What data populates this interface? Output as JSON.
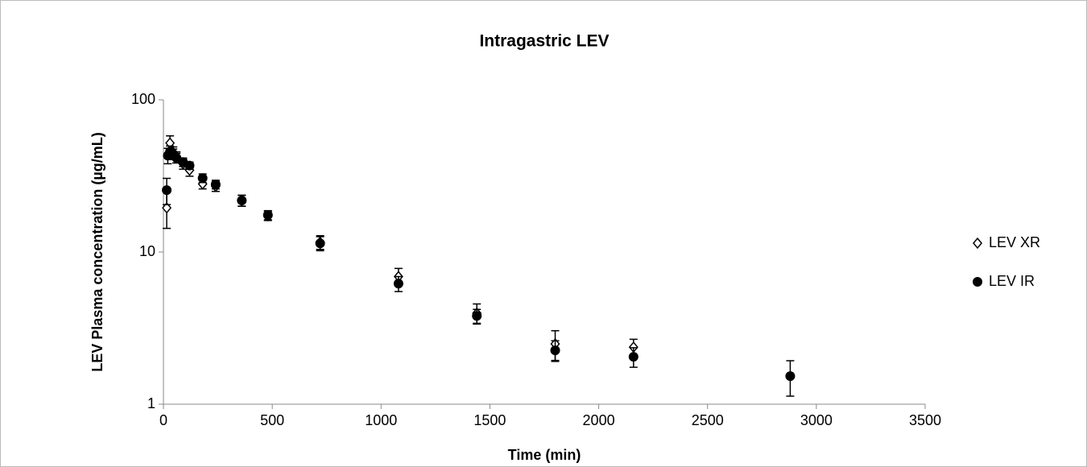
{
  "chart_data": {
    "type": "scatter",
    "title": "Intragastric LEV",
    "x_label": "Time (min)",
    "y_label": "LEV Plasma concentration (µg/mL)",
    "log_y": true,
    "legend": "right",
    "xlim": [
      0,
      3500
    ],
    "xticks": [
      0,
      500,
      1000,
      1500,
      2000,
      2500,
      3000,
      3500
    ],
    "ylim": [
      1,
      100
    ],
    "yticks": [
      1,
      10,
      100
    ],
    "series": [
      {
        "name": "LEV XR",
        "marker": "diamond",
        "color": "#000000",
        "x": [
          15,
          30,
          45,
          60,
          90,
          120,
          180,
          240,
          360,
          480,
          720,
          1080,
          1440,
          1800,
          2160
        ],
        "values": [
          19.5,
          52,
          45,
          42,
          38,
          34.5,
          28,
          27,
          21.8,
          17.3,
          11.6,
          6.9,
          3.96,
          2.49,
          2.37
        ],
        "errors": [
          5.2,
          6,
          4,
          3.5,
          3,
          3,
          2,
          2,
          1.8,
          1.2,
          1.2,
          0.9,
          0.6,
          0.55,
          0.3
        ]
      },
      {
        "name": "LEV IR",
        "marker": "circle",
        "color": "#000000",
        "x": [
          15,
          20,
          30,
          45,
          60,
          90,
          120,
          180,
          240,
          360,
          480,
          720,
          1080,
          1440,
          1800,
          2160,
          2880
        ],
        "values": [
          25.5,
          43,
          45.7,
          44,
          41.5,
          39,
          37,
          30.6,
          27.8,
          21.8,
          17.5,
          11.4,
          6.2,
          3.8,
          2.26,
          2.05,
          1.53
        ],
        "errors": [
          5,
          5,
          4,
          3.5,
          3,
          2.5,
          2,
          2,
          1.8,
          1.8,
          1.2,
          1.2,
          0.7,
          0.4,
          0.35,
          0.3,
          0.4
        ]
      }
    ]
  }
}
